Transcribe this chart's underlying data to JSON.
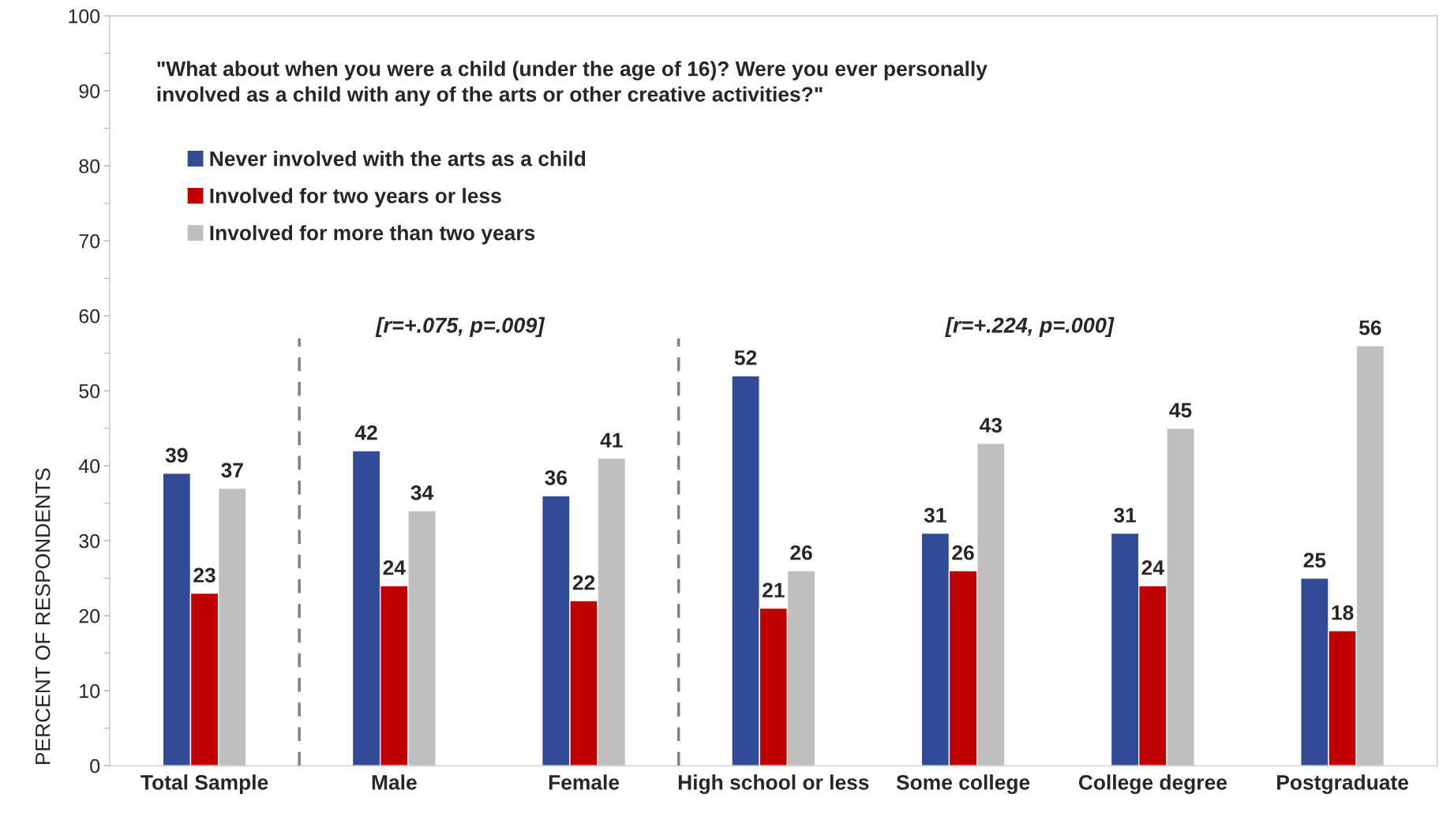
{
  "chart_data": {
    "type": "bar",
    "ylabel": "PERCENT OF RESPONDENTS",
    "categories": [
      "Total Sample",
      "Male",
      "Female",
      "High school or less",
      "Some college",
      "College degree",
      "Postgraduate"
    ],
    "series": [
      {
        "name": "Never involved with the arts as a child",
        "color": "#334a96",
        "values": [
          39,
          42,
          36,
          52,
          31,
          31,
          25
        ]
      },
      {
        "name": "Involved for two years or less",
        "color": "#c00000",
        "values": [
          23,
          24,
          22,
          21,
          26,
          24,
          18
        ]
      },
      {
        "name": "Involved for more than two years",
        "color": "#bfbfbf",
        "values": [
          37,
          34,
          41,
          26,
          43,
          45,
          56
        ]
      }
    ],
    "ylim": [
      0,
      100
    ],
    "yticks": [
      0,
      10,
      20,
      30,
      40,
      50,
      60,
      70,
      80,
      90,
      100
    ],
    "data_labels": true,
    "legend": "top left",
    "grid": false,
    "annotations": [
      "\"What about when you were a child (under the age of 16)? Were you ever personally\ninvolved as a child with any of the arts or other creative activities?\"",
      "[r=+.075, p=.009]",
      "[r=+.224, p=.000]"
    ]
  }
}
